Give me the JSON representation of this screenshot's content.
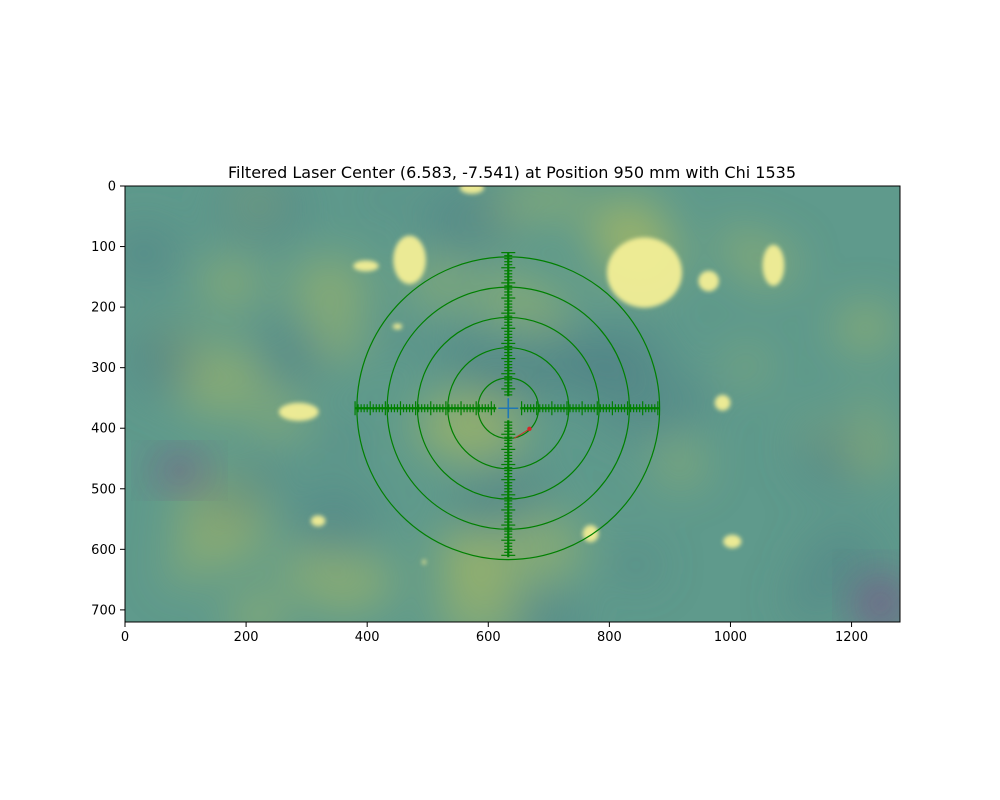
{
  "chart_data": {
    "type": "heatmap",
    "title": "Filtered Laser Center (6.583, -7.541) at Position 950 mm with Chi 1535",
    "xlabel": "",
    "ylabel": "",
    "xlim": [
      0,
      1280
    ],
    "ylim": [
      720,
      0
    ],
    "x_ticks": [
      0,
      200,
      400,
      600,
      800,
      1000,
      1200
    ],
    "y_ticks": [
      0,
      100,
      200,
      300,
      400,
      500,
      600,
      700
    ],
    "colormap": "viridis",
    "colors": {
      "background_teal": "#5f9a8c",
      "background_yellowgreen": "#a6b865",
      "background_darkteal": "#4d7f86",
      "hot_spot": "#f2ee96",
      "cold_spot": "#7a4f87",
      "reticle": "#008000",
      "center_marker": "#1f77b4",
      "laser_point": "#d62728"
    },
    "reticle": {
      "center": [
        633,
        367
      ],
      "ring_radii": [
        50,
        100,
        150,
        200,
        250
      ],
      "horizontal_extent": [
        380,
        883
      ],
      "vertical_extent": [
        110,
        613
      ]
    },
    "laser_point": [
      668,
      401
    ],
    "hot_spots": [
      {
        "cx": 470,
        "cy": 122,
        "rx": 27,
        "ry": 40
      },
      {
        "cx": 398,
        "cy": 132,
        "rx": 21,
        "ry": 9
      },
      {
        "cx": 450,
        "cy": 232,
        "rx": 8,
        "ry": 5
      },
      {
        "cx": 858,
        "cy": 143,
        "rx": 62,
        "ry": 58
      },
      {
        "cx": 964,
        "cy": 157,
        "rx": 17,
        "ry": 17
      },
      {
        "cx": 1071,
        "cy": 131,
        "rx": 18,
        "ry": 34
      },
      {
        "cx": 573,
        "cy": 3,
        "rx": 20,
        "ry": 10
      },
      {
        "cx": 287,
        "cy": 373,
        "rx": 33,
        "ry": 15
      },
      {
        "cx": 987,
        "cy": 358,
        "rx": 13,
        "ry": 13
      },
      {
        "cx": 319,
        "cy": 553,
        "rx": 12,
        "ry": 9
      },
      {
        "cx": 769,
        "cy": 574,
        "rx": 13,
        "ry": 14
      },
      {
        "cx": 1003,
        "cy": 587,
        "rx": 15,
        "ry": 11
      },
      {
        "cx": 494,
        "cy": 621,
        "rx": 3,
        "ry": 4
      }
    ],
    "cold_spots": [
      {
        "cx": 1248,
        "cy": 690,
        "rx": 40,
        "ry": 45
      },
      {
        "cx": 90,
        "cy": 470,
        "rx": 40,
        "ry": 25
      }
    ]
  }
}
